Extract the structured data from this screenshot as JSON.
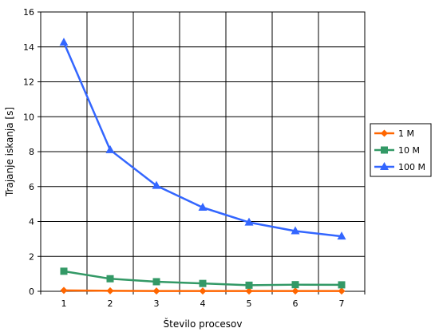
{
  "chart_data": {
    "type": "line",
    "title": "",
    "xlabel": "Število procesov",
    "ylabel": "Trajanje iskanja [s]",
    "categories": [
      1,
      2,
      3,
      4,
      5,
      6,
      7
    ],
    "ylim": [
      0,
      16
    ],
    "yticks": [
      0,
      2,
      4,
      6,
      8,
      10,
      12,
      14,
      16
    ],
    "grid": true,
    "legend_position": "right",
    "series": [
      {
        "name": "1 M",
        "color": "#ff6600",
        "marker": "diamond",
        "values": [
          0.05,
          0.03,
          0.02,
          0.02,
          0.02,
          0.02,
          0.02
        ]
      },
      {
        "name": "10 M",
        "color": "#339966",
        "marker": "square",
        "values": [
          1.15,
          0.72,
          0.55,
          0.45,
          0.35,
          0.38,
          0.37
        ]
      },
      {
        "name": "100 M",
        "color": "#3366ff",
        "marker": "triangle",
        "values": [
          14.25,
          8.1,
          6.05,
          4.8,
          3.95,
          3.45,
          3.15
        ]
      }
    ]
  }
}
